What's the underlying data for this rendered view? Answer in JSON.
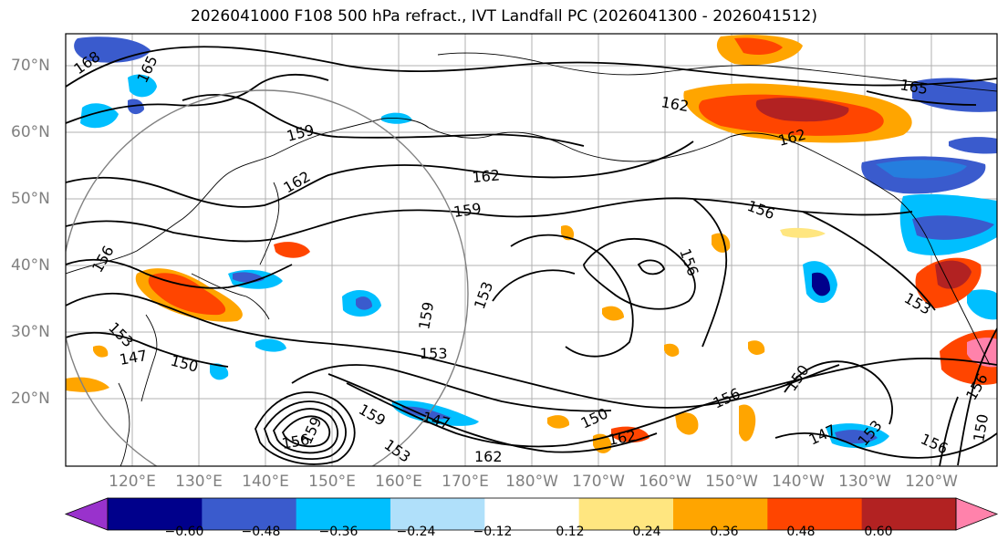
{
  "title": "2026041000 F108 500 hPa refract., IVT Landfall PC (2026041300 - 2026041512)",
  "map": {
    "lat_labels": [
      "70°N",
      "60°N",
      "50°N",
      "40°N",
      "30°N",
      "20°N"
    ],
    "lon_labels": [
      "120°E",
      "130°E",
      "140°E",
      "150°E",
      "160°E",
      "170°E",
      "180°W",
      "170°W",
      "160°W",
      "150°W",
      "140°W",
      "130°W",
      "120°W"
    ],
    "contour_labels": [
      "168",
      "165",
      "162",
      "159",
      "162",
      "162",
      "159",
      "156",
      "156",
      "153",
      "159",
      "153",
      "150",
      "147",
      "156",
      "153",
      "150",
      "147",
      "153",
      "156",
      "162",
      "159",
      "162",
      "150",
      "147",
      "153",
      "150",
      "156",
      "162",
      "165",
      "156",
      "159",
      "156",
      "153"
    ]
  },
  "colorbar": {
    "ticks": [
      "−0.60",
      "−0.48",
      "−0.36",
      "−0.24",
      "−0.12",
      "0.12",
      "0.24",
      "0.36",
      "0.48",
      "0.60"
    ],
    "colors": [
      "#9932cc",
      "#00008b",
      "#3a5bcd",
      "#00bfff",
      "#b0e0fa",
      "#ffffff",
      "#ffe680",
      "#ffa500",
      "#ff4500",
      "#b22222",
      "#ff82ab"
    ]
  }
}
